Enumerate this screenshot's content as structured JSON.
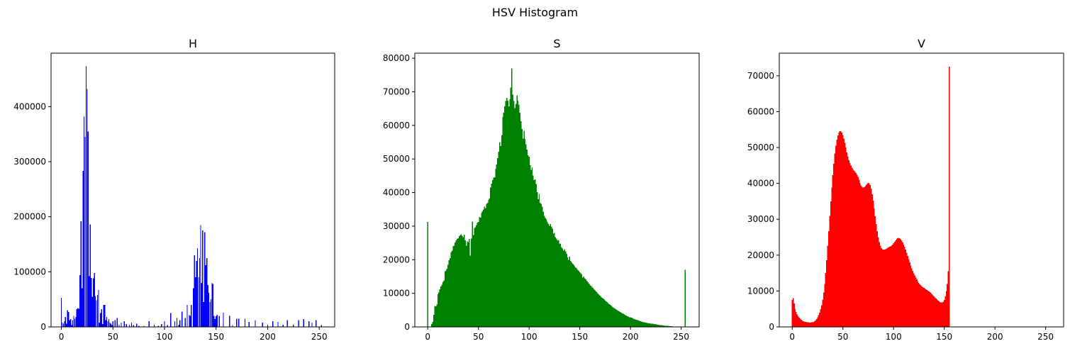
{
  "figure": {
    "suptitle": "HSV Histogram"
  },
  "chart_data": [
    {
      "type": "bar",
      "title": "H",
      "color": "#0000ff",
      "xlim": [
        -10,
        265
      ],
      "ylim": [
        0,
        497000
      ],
      "xticks": [
        0,
        50,
        100,
        150,
        200,
        250
      ],
      "yticks": [
        0,
        100000,
        200000,
        300000,
        400000
      ],
      "sparse": true,
      "points": [
        [
          0,
          53000
        ],
        [
          1,
          8000
        ],
        [
          2,
          6000
        ],
        [
          3,
          10000
        ],
        [
          4,
          18000
        ],
        [
          5,
          6000
        ],
        [
          6,
          30000
        ],
        [
          7,
          27000
        ],
        [
          8,
          12000
        ],
        [
          9,
          14000
        ],
        [
          10,
          3000
        ],
        [
          11,
          12000
        ],
        [
          12,
          20000
        ],
        [
          13,
          15000
        ],
        [
          14,
          18000
        ],
        [
          15,
          32000
        ],
        [
          16,
          34000
        ],
        [
          17,
          33000
        ],
        [
          18,
          94000
        ],
        [
          19,
          192000
        ],
        [
          20,
          70000
        ],
        [
          21,
          283000
        ],
        [
          22,
          382000
        ],
        [
          23,
          345000
        ],
        [
          24,
          473000
        ],
        [
          25,
          432000
        ],
        [
          26,
          355000
        ],
        [
          27,
          92000
        ],
        [
          28,
          186000
        ],
        [
          29,
          89000
        ],
        [
          30,
          55000
        ],
        [
          31,
          88000
        ],
        [
          32,
          98000
        ],
        [
          33,
          56000
        ],
        [
          34,
          48000
        ],
        [
          35,
          58000
        ],
        [
          36,
          67000
        ],
        [
          37,
          8000
        ],
        [
          38,
          25000
        ],
        [
          39,
          32000
        ],
        [
          40,
          5000
        ],
        [
          41,
          40000
        ],
        [
          42,
          40000
        ],
        [
          43,
          12000
        ],
        [
          44,
          18000
        ],
        [
          45,
          10000
        ],
        [
          46,
          14000
        ],
        [
          47,
          8000
        ],
        [
          48,
          6000
        ],
        [
          49,
          3000
        ],
        [
          50,
          10000
        ],
        [
          52,
          12000
        ],
        [
          54,
          16000
        ],
        [
          56,
          4000
        ],
        [
          58,
          8000
        ],
        [
          61,
          10000
        ],
        [
          63,
          5000
        ],
        [
          66,
          4000
        ],
        [
          68,
          8000
        ],
        [
          70,
          3000
        ],
        [
          73,
          6000
        ],
        [
          75,
          2000
        ],
        [
          80,
          2000
        ],
        [
          85,
          10000
        ],
        [
          90,
          4000
        ],
        [
          94,
          2000
        ],
        [
          97,
          5000
        ],
        [
          100,
          10000
        ],
        [
          103,
          3000
        ],
        [
          106,
          25000
        ],
        [
          110,
          10000
        ],
        [
          112,
          16000
        ],
        [
          114,
          4000
        ],
        [
          115,
          12000
        ],
        [
          117,
          28000
        ],
        [
          120,
          16000
        ],
        [
          122,
          40000
        ],
        [
          124,
          22000
        ],
        [
          125,
          20000
        ],
        [
          126,
          40000
        ],
        [
          128,
          70000
        ],
        [
          129,
          130000
        ],
        [
          130,
          90000
        ],
        [
          131,
          120000
        ],
        [
          132,
          143000
        ],
        [
          133,
          90000
        ],
        [
          134,
          125000
        ],
        [
          135,
          185000
        ],
        [
          136,
          80000
        ],
        [
          137,
          175000
        ],
        [
          138,
          45000
        ],
        [
          139,
          172000
        ],
        [
          140,
          112000
        ],
        [
          141,
          125000
        ],
        [
          142,
          76000
        ],
        [
          143,
          62000
        ],
        [
          144,
          45000
        ],
        [
          145,
          50000
        ],
        [
          146,
          80000
        ],
        [
          147,
          78000
        ],
        [
          148,
          20000
        ],
        [
          149,
          14000
        ],
        [
          150,
          19000
        ],
        [
          151,
          22000
        ],
        [
          153,
          20000
        ],
        [
          157,
          26000
        ],
        [
          163,
          20000
        ],
        [
          166,
          3000
        ],
        [
          170,
          15000
        ],
        [
          172,
          15000
        ],
        [
          178,
          15000
        ],
        [
          182,
          9000
        ],
        [
          188,
          12000
        ],
        [
          195,
          8000
        ],
        [
          200,
          4000
        ],
        [
          205,
          10000
        ],
        [
          210,
          9000
        ],
        [
          215,
          4000
        ],
        [
          219,
          12000
        ],
        [
          225,
          4000
        ],
        [
          230,
          12000
        ],
        [
          235,
          14000
        ],
        [
          240,
          10000
        ],
        [
          243,
          8000
        ],
        [
          247,
          12000
        ],
        [
          252,
          3000
        ]
      ]
    },
    {
      "type": "bar",
      "title": "S",
      "color": "#008000",
      "xlim": [
        -12.75,
        267.75
      ],
      "ylim": [
        0,
        81500
      ],
      "xticks": [
        0,
        50,
        100,
        150,
        200,
        250
      ],
      "yticks": [
        0,
        10000,
        20000,
        30000,
        40000,
        50000,
        60000,
        70000,
        80000
      ],
      "sparse": false,
      "x_start": 0,
      "values": [
        31300,
        0,
        0,
        0,
        800,
        1500,
        3600,
        6200,
        6100,
        6600,
        9700,
        10200,
        11200,
        12000,
        12600,
        13400,
        13800,
        16600,
        16800,
        17300,
        18500,
        19800,
        20500,
        22300,
        22700,
        24100,
        24200,
        25100,
        25800,
        26200,
        26400,
        27000,
        27300,
        27600,
        27100,
        26700,
        27500,
        25800,
        24200,
        25600,
        25200,
        26200,
        21200,
        26300,
        31400,
        27300,
        29400,
        29700,
        30300,
        31000,
        31300,
        32700,
        32500,
        33900,
        34400,
        34900,
        35800,
        35400,
        36600,
        37000,
        37800,
        38200,
        41500,
        42600,
        43700,
        44400,
        44600,
        47100,
        48400,
        50300,
        52200,
        55000,
        53800,
        57100,
        62500,
        63800,
        65700,
        67200,
        68200,
        67400,
        65700,
        67800,
        71300,
        77000,
        69100,
        67200,
        65100,
        66400,
        68900,
        67400,
        66200,
        63800,
        61200,
        58900,
        56100,
        58400,
        56000,
        54400,
        52800,
        51100,
        50700,
        48100,
        46800,
        47500,
        45100,
        43700,
        43900,
        42500,
        40100,
        38000,
        39600,
        37000,
        36600,
        35800,
        34300,
        33000,
        32400,
        32100,
        31400,
        30700,
        30100,
        30600,
        29900,
        29200,
        27800,
        28000,
        26700,
        26300,
        25800,
        25900,
        24800,
        24700,
        23800,
        23300,
        22700,
        23100,
        22500,
        21800,
        20700,
        20000,
        20900,
        19600,
        19200,
        18800,
        18500,
        18100,
        17700,
        17400,
        17000,
        16700,
        16300,
        15900,
        15600,
        14700,
        15000,
        14500,
        14100,
        13700,
        13300,
        12900,
        12600,
        12200,
        11900,
        11600,
        11200,
        10900,
        10600,
        10300,
        9900,
        9600,
        9300,
        9000,
        8700,
        8400,
        8200,
        7900,
        7600,
        7400,
        7100,
        6800,
        6500,
        6300,
        6000,
        5800,
        5600,
        5400,
        5200,
        5000,
        4800,
        4600,
        4400,
        4200,
        4000,
        3900,
        3700,
        3500,
        3400,
        3200,
        3100,
        2900,
        2800,
        2700,
        2600,
        2400,
        2300,
        2200,
        2100,
        2000,
        1900,
        1800,
        1700,
        1600,
        1500,
        1400,
        1350,
        1300,
        1200,
        1150,
        1100,
        1050,
        1000,
        950,
        900,
        850,
        800,
        750,
        700,
        650,
        600,
        560,
        520,
        480,
        440,
        400,
        360,
        330,
        300,
        270,
        240,
        210,
        190,
        170,
        150,
        130,
        110,
        100,
        90,
        80,
        70,
        60,
        50,
        40,
        30,
        20,
        17000
      ]
    },
    {
      "type": "bar",
      "title": "V",
      "color": "#ff0000",
      "xlim": [
        -12.75,
        267.75
      ],
      "ylim": [
        0,
        76300
      ],
      "xticks": [
        0,
        50,
        100,
        150,
        200,
        250
      ],
      "yticks": [
        0,
        10000,
        20000,
        30000,
        40000,
        50000,
        60000,
        70000
      ],
      "sparse": false,
      "x_start": 0,
      "values": [
        7500,
        8000,
        6500,
        5000,
        4200,
        3500,
        3000,
        2600,
        2300,
        2000,
        1800,
        1600,
        1500,
        1400,
        1350,
        1300,
        1250,
        1200,
        1200,
        1250,
        1300,
        1400,
        1600,
        1900,
        2200,
        2700,
        3300,
        4000,
        4900,
        6000,
        7600,
        9600,
        12000,
        15000,
        18600,
        22600,
        26700,
        30900,
        35000,
        38800,
        42300,
        45500,
        48300,
        50500,
        52200,
        53400,
        54200,
        54600,
        54600,
        54200,
        53500,
        52500,
        51300,
        50000,
        48600,
        47500,
        46500,
        45700,
        45000,
        44400,
        44000,
        43600,
        43300,
        42900,
        42400,
        41800,
        41000,
        40100,
        39400,
        39000,
        38800,
        38900,
        39200,
        39600,
        39900,
        40100,
        40000,
        39500,
        38500,
        37000,
        35200,
        33000,
        30800,
        28700,
        26700,
        25000,
        23600,
        22600,
        21900,
        21600,
        21500,
        21500,
        21600,
        21800,
        22000,
        22200,
        22300,
        22400,
        22600,
        22900,
        23300,
        23700,
        24100,
        24500,
        24700,
        24800,
        24700,
        24400,
        24000,
        23500,
        22900,
        22300,
        21500,
        20700,
        19800,
        18900,
        18000,
        17100,
        16300,
        15600,
        14900,
        14300,
        13700,
        13200,
        12700,
        12300,
        11900,
        11600,
        11300,
        11100,
        10900,
        10700,
        10500,
        10300,
        10100,
        9900,
        9700,
        9400,
        9100,
        8800,
        8500,
        8200,
        7900,
        7600,
        7300,
        7100,
        6900,
        6800,
        6800,
        7000,
        7500,
        8500,
        10000,
        12000,
        15500,
        72500
      ]
    }
  ]
}
